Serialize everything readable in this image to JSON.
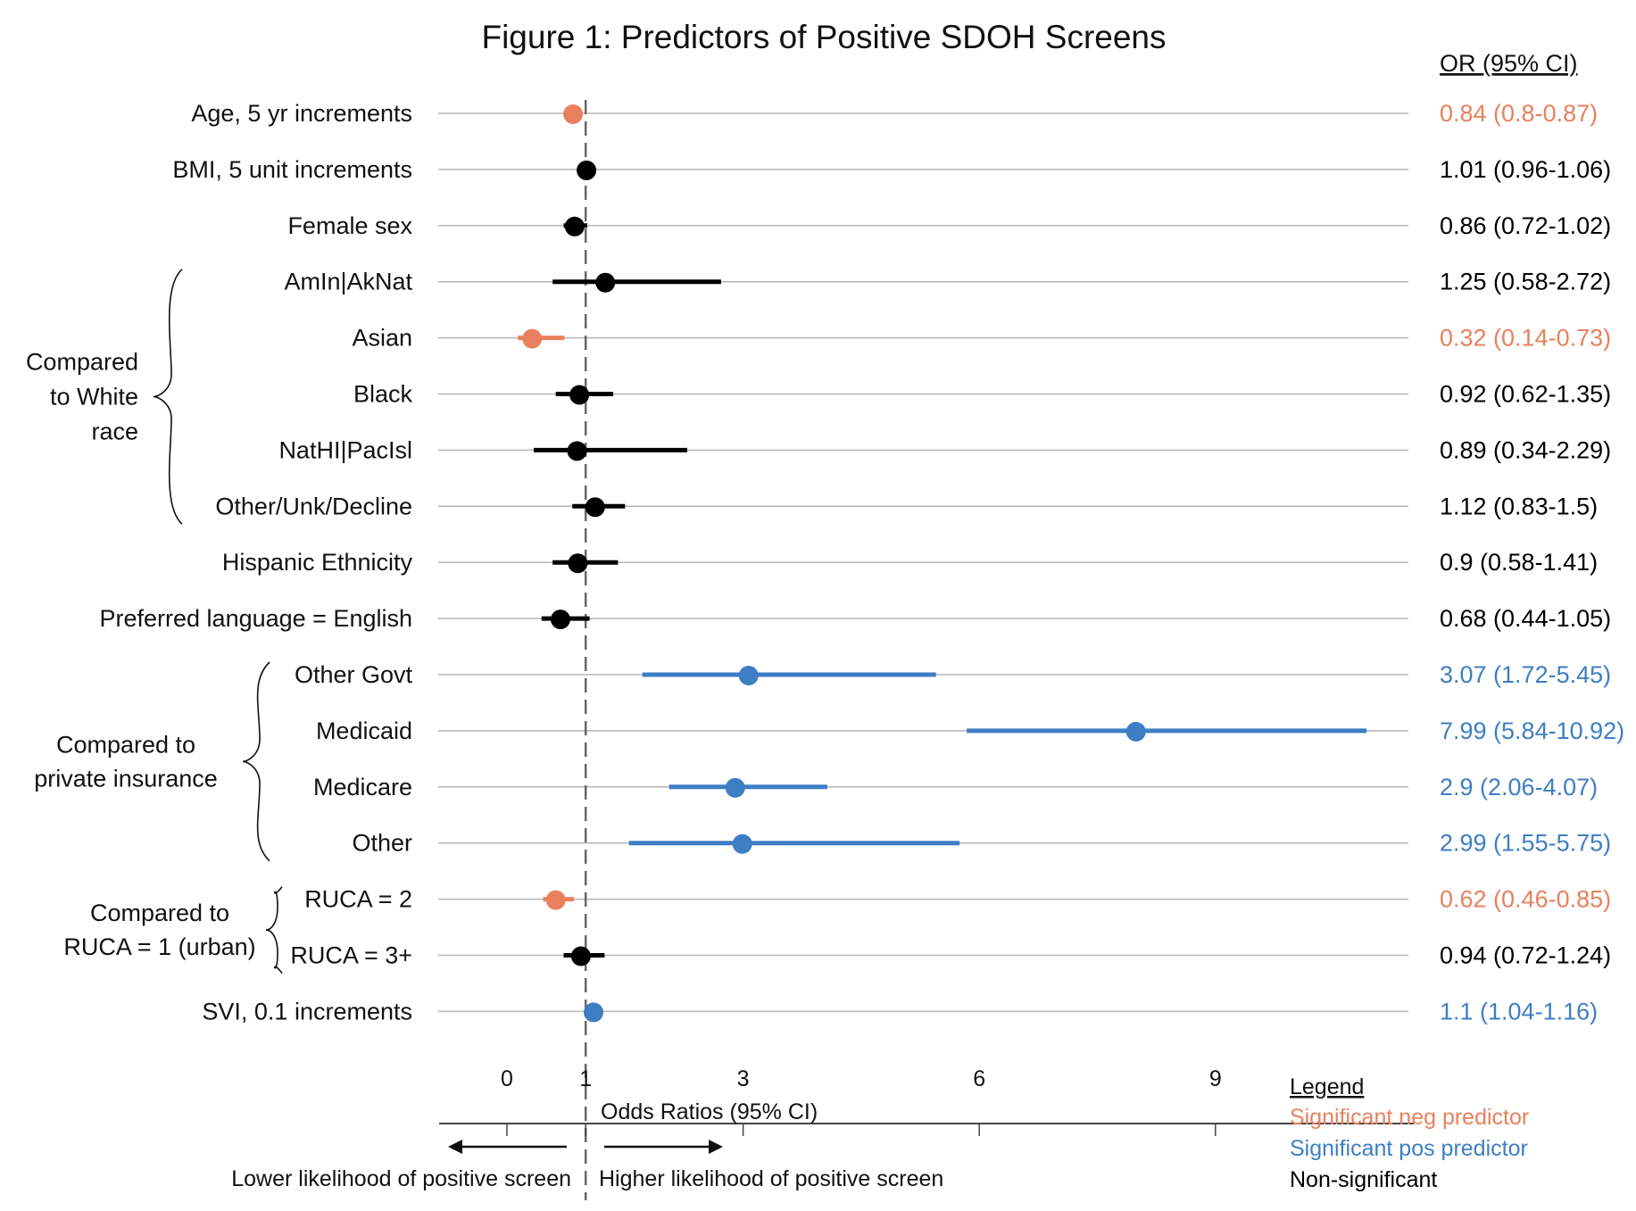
{
  "chart_data": {
    "type": "forest",
    "title": "Figure 1: Predictors of Positive SDOH Screens",
    "or_header": "OR (95% CI)",
    "xlabel": "Odds Ratios (95% CI)",
    "xticks": [
      0,
      1,
      3,
      6,
      9
    ],
    "xlim": [
      -0.75,
      9.75
    ],
    "reference_line": 1,
    "grid": "horizontal row lines",
    "direction_labels": {
      "left": "Lower likelihood of positive screen",
      "right": "Higher likelihood of positive screen"
    },
    "colors": {
      "neg": "#E8805E",
      "pos": "#3E7EC4",
      "ns": "#000000"
    },
    "legend": {
      "placement": "bottom-right",
      "title": "Legend",
      "items": [
        {
          "label": "Significant neg predictor",
          "key": "neg"
        },
        {
          "label": "Significant pos predictor",
          "key": "pos"
        },
        {
          "label": "Non-significant",
          "key": "ns"
        }
      ]
    },
    "rows": [
      {
        "label": "Age, 5 yr increments",
        "or": 0.84,
        "lo": 0.8,
        "hi": 0.87,
        "text": "0.84 (0.8-0.87)",
        "sig": "neg"
      },
      {
        "label": "BMI, 5 unit increments",
        "or": 1.01,
        "lo": 0.96,
        "hi": 1.06,
        "text": "1.01  (0.96-1.06)",
        "sig": "ns"
      },
      {
        "label": "Female sex",
        "or": 0.86,
        "lo": 0.72,
        "hi": 1.02,
        "text": "0.86 (0.72-1.02)",
        "sig": "ns"
      },
      {
        "label": "AmIn|AkNat",
        "or": 1.25,
        "lo": 0.58,
        "hi": 2.72,
        "text": "1.25 (0.58-2.72)",
        "sig": "ns"
      },
      {
        "label": "Asian",
        "or": 0.32,
        "lo": 0.14,
        "hi": 0.73,
        "text": "0.32 (0.14-0.73)",
        "sig": "neg"
      },
      {
        "label": "Black",
        "or": 0.92,
        "lo": 0.62,
        "hi": 1.35,
        "text": "0.92 (0.62-1.35)",
        "sig": "ns"
      },
      {
        "label": "NatHI|PacIsl",
        "or": 0.89,
        "lo": 0.34,
        "hi": 2.29,
        "text": "0.89 (0.34-2.29)",
        "sig": "ns"
      },
      {
        "label": "Other/Unk/Decline",
        "or": 1.12,
        "lo": 0.83,
        "hi": 1.5,
        "text": "1.12 (0.83-1.5)",
        "sig": "ns"
      },
      {
        "label": "Hispanic Ethnicity",
        "or": 0.9,
        "lo": 0.58,
        "hi": 1.41,
        "text": "0.9 (0.58-1.41)",
        "sig": "ns"
      },
      {
        "label": "Preferred language = English",
        "or": 0.68,
        "lo": 0.44,
        "hi": 1.05,
        "text": "0.68 (0.44-1.05)",
        "sig": "ns"
      },
      {
        "label": "Other Govt",
        "or": 3.07,
        "lo": 1.72,
        "hi": 5.45,
        "text": "3.07 (1.72-5.45)",
        "sig": "pos"
      },
      {
        "label": "Medicaid",
        "or": 7.99,
        "lo": 5.84,
        "hi": 10.92,
        "text": "7.99 (5.84-10.92)",
        "sig": "pos"
      },
      {
        "label": "Medicare",
        "or": 2.9,
        "lo": 2.06,
        "hi": 4.07,
        "text": "2.9 (2.06-4.07)",
        "sig": "pos"
      },
      {
        "label": "Other",
        "or": 2.99,
        "lo": 1.55,
        "hi": 5.75,
        "text": "2.99 (1.55-5.75)",
        "sig": "pos"
      },
      {
        "label": "RUCA = 2",
        "or": 0.62,
        "lo": 0.46,
        "hi": 0.85,
        "text": "0.62 (0.46-0.85)",
        "sig": "neg"
      },
      {
        "label": "RUCA = 3+",
        "or": 0.94,
        "lo": 0.72,
        "hi": 1.24,
        "text": "0.94 (0.72-1.24)",
        "sig": "ns"
      },
      {
        "label": "SVI, 0.1 increments",
        "or": 1.1,
        "lo": 1.04,
        "hi": 1.16,
        "text": "1.1 (1.04-1.16)",
        "sig": "pos"
      }
    ],
    "groups": [
      {
        "lines": [
          "Compared",
          "to White",
          "race"
        ],
        "first_row": 3,
        "last_row": 7,
        "align": "right"
      },
      {
        "lines": [
          "Compared to",
          "private insurance"
        ],
        "first_row": 10,
        "last_row": 13,
        "align": "middle"
      },
      {
        "lines": [
          "Compared to",
          "RUCA = 1 (urban)"
        ],
        "first_row": 14,
        "last_row": 15,
        "align": "middle"
      }
    ]
  }
}
